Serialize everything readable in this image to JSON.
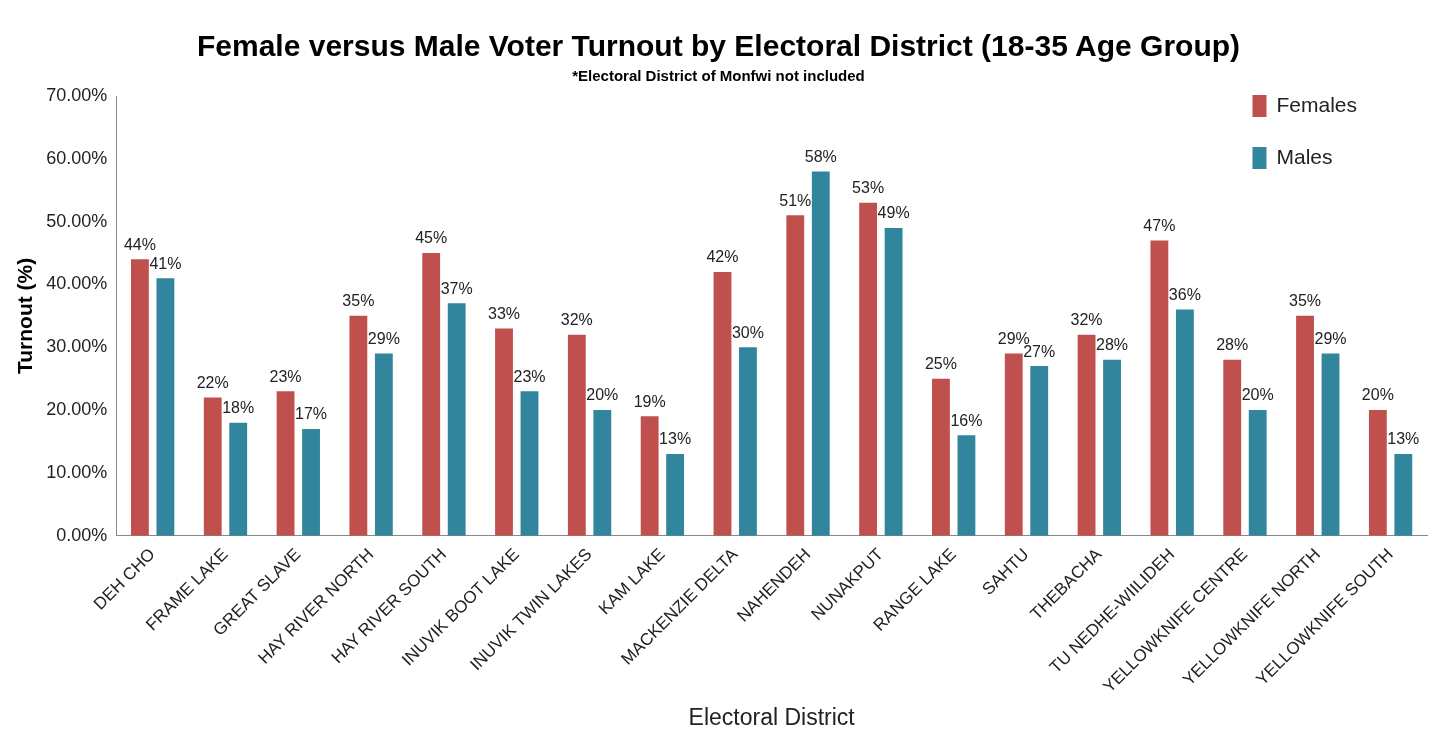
{
  "chart_data": {
    "type": "bar",
    "title": "Female versus Male Voter Turnout by Electoral District (18-35 Age Group)",
    "subtitle": "*Electoral District of Monfwi not included",
    "xlabel": "Electoral District",
    "ylabel": "Turnout (%)",
    "categories": [
      "DEH CHO",
      "FRAME LAKE",
      "GREAT SLAVE",
      "HAY RIVER NORTH",
      "HAY RIVER SOUTH",
      "INUVIK BOOT LAKE",
      "INUVIK TWIN LAKES",
      "KAM LAKE",
      "MACKENZIE DELTA",
      "NAHENDEH",
      "NUNAKPUT",
      "RANGE LAKE",
      "SAHTU",
      "THEBACHA",
      "TU NEDHE-WIILIDEH",
      "YELLOWKNIFE CENTRE",
      "YELLOWKNIFE NORTH",
      "YELLOWKNIFE SOUTH"
    ],
    "series": [
      {
        "name": "Females",
        "color": "#c0504d",
        "values": [
          44,
          22,
          23,
          35,
          45,
          33,
          32,
          19,
          42,
          51,
          53,
          25,
          29,
          32,
          47,
          28,
          35,
          20
        ],
        "value_labels": [
          "44%",
          "22%",
          "23%",
          "35%",
          "45%",
          "33%",
          "32%",
          "19%",
          "42%",
          "51%",
          "53%",
          "25%",
          "29%",
          "32%",
          "47%",
          "28%",
          "35%",
          "20%"
        ]
      },
      {
        "name": "Males",
        "color": "#31859c",
        "values": [
          41,
          18,
          17,
          29,
          37,
          23,
          20,
          13,
          30,
          58,
          49,
          16,
          27,
          28,
          36,
          20,
          29,
          13
        ],
        "value_labels": [
          "41%",
          "18%",
          "17%",
          "29%",
          "37%",
          "23%",
          "20%",
          "13%",
          "30%",
          "58%",
          "49%",
          "16%",
          "27%",
          "28%",
          "36%",
          "20%",
          "29%",
          "13%"
        ]
      }
    ],
    "ylim": [
      0,
      70
    ],
    "yticks": [
      {
        "value": 0,
        "label": "0.00%"
      },
      {
        "value": 10,
        "label": "10.00%"
      },
      {
        "value": 20,
        "label": "20.00%"
      },
      {
        "value": 30,
        "label": "30.00%"
      },
      {
        "value": 40,
        "label": "40.00%"
      },
      {
        "value": 50,
        "label": "50.00%"
      },
      {
        "value": 60,
        "label": "60.00%"
      },
      {
        "value": 70,
        "label": "70.00%"
      }
    ],
    "grid": false,
    "legend": "top right"
  }
}
